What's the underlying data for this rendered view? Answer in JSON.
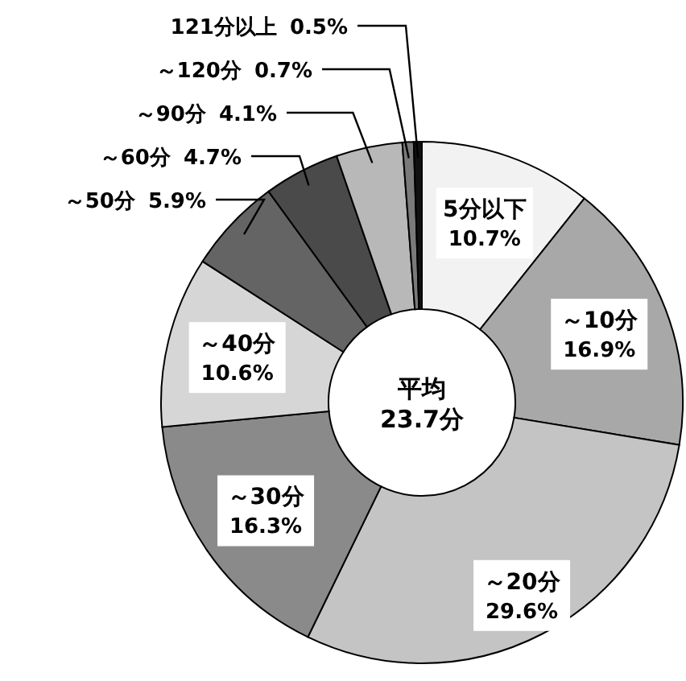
{
  "chart_data": {
    "type": "donut",
    "categories": [
      "5分以下",
      "～10分",
      "～20分",
      "～30分",
      "～40分",
      "～50分",
      "～60分",
      "～90分",
      "～120分",
      "121分以上"
    ],
    "values": [
      10.7,
      16.9,
      29.6,
      16.3,
      10.6,
      5.9,
      4.7,
      4.1,
      0.7,
      0.5
    ],
    "colors": [
      "#f2f2f2",
      "#a8a8a8",
      "#c4c4c4",
      "#8a8a8a",
      "#d6d6d6",
      "#646464",
      "#4a4a4a",
      "#b8b8b8",
      "#7a7a7a",
      "#111111"
    ],
    "value_labels": [
      "10.7%",
      "16.9%",
      "29.6%",
      "16.3%",
      "10.6%",
      "5.9%",
      "4.7%",
      "4.1%",
      "0.7%",
      "0.5%"
    ],
    "annotations": [
      "平均\n23.7分"
    ]
  }
}
